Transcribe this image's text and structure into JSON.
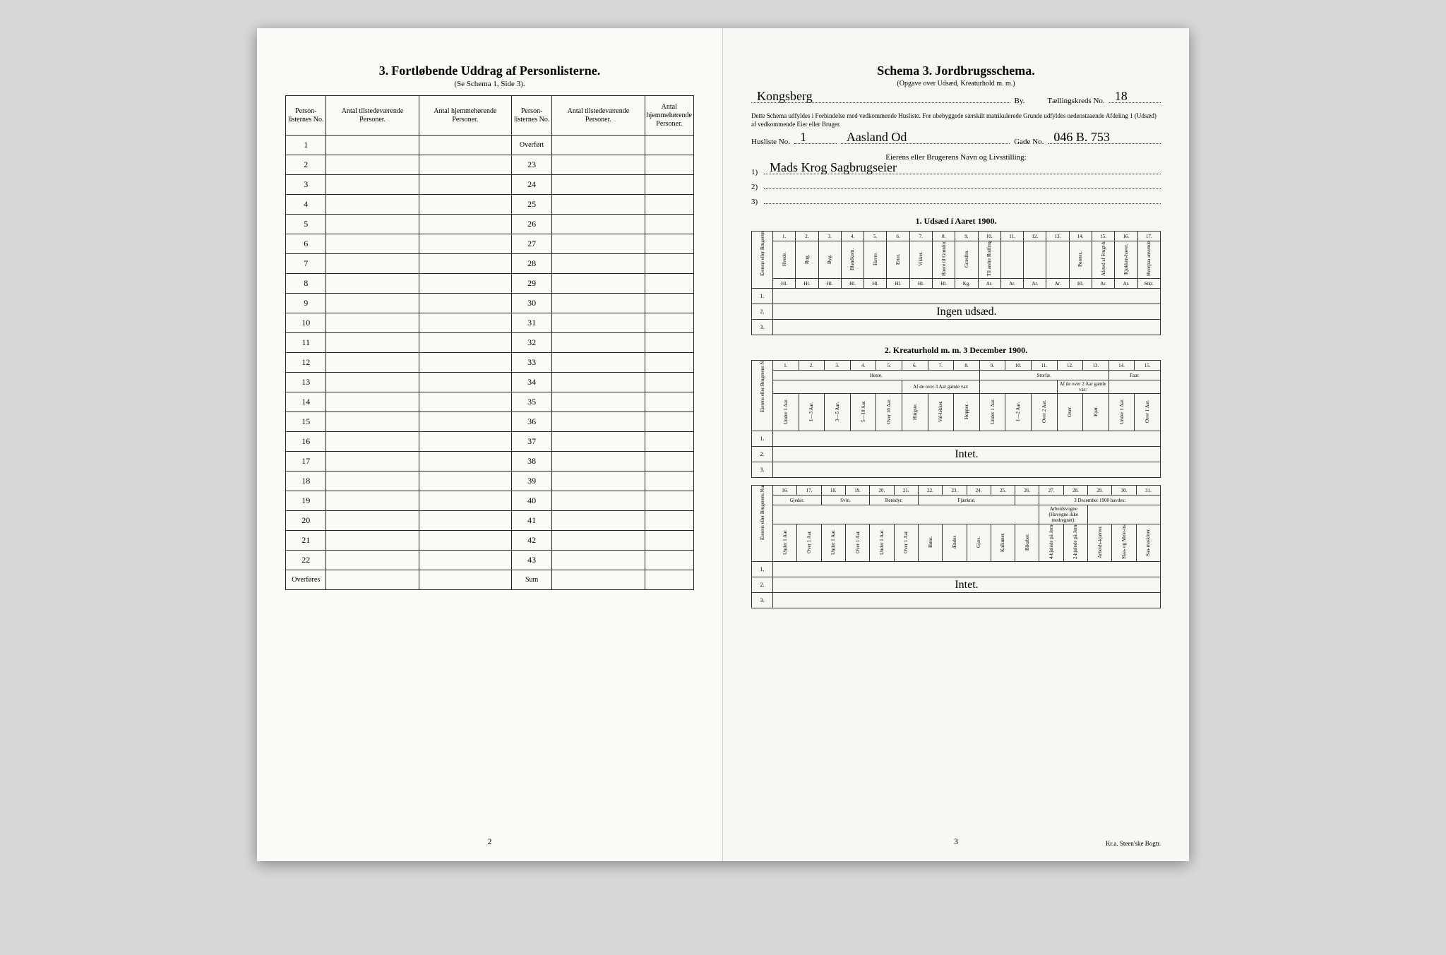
{
  "left": {
    "title_num": "3.",
    "title": "Fortløbende Uddrag af Personlisterne.",
    "subtitle": "(Se Schema 1, Side 3).",
    "headers": {
      "col1": "Person-listernes No.",
      "col2": "Antal tilstedeværende Personer.",
      "col3": "Antal hjemmehørende Personer.",
      "col4": "Person-listernes No.",
      "col5": "Antal tilstedeværende Personer.",
      "col6": "Antal hjemmehørende Personer."
    },
    "overfort": "Overført",
    "left_rows": [
      "1",
      "2",
      "3",
      "4",
      "5",
      "6",
      "7",
      "8",
      "9",
      "10",
      "11",
      "12",
      "13",
      "14",
      "15",
      "16",
      "17",
      "18",
      "19",
      "20",
      "21",
      "22"
    ],
    "right_rows": [
      "23",
      "24",
      "25",
      "26",
      "27",
      "28",
      "29",
      "30",
      "31",
      "32",
      "33",
      "34",
      "35",
      "36",
      "37",
      "38",
      "39",
      "40",
      "41",
      "42",
      "43"
    ],
    "overfores": "Overføres",
    "sum": "Sum",
    "page_num": "2"
  },
  "right": {
    "title_prefix": "Schema 3.",
    "title": "Jordbrugsschema.",
    "subtitle": "(Opgave over Udsæd, Kreaturhold m. m.)",
    "city_value": "Kongsberg",
    "by_label": "By.",
    "kreds_label": "Tællingskreds No.",
    "kreds_value": "18",
    "note": "Dette Schema udfyldes i Forbindelse med vedkommende Husliste. For ubebyggede særskilt matrikulerede Grunde udfyldes nedenstaaende Afdeling 1 (Udsæd) af vedkommende Eier eller Bruger.",
    "husliste_label": "Husliste No.",
    "husliste_value": "1",
    "husliste_name": "Aasland Od",
    "gade_label": "Gade No.",
    "gade_value": "046 B. 753",
    "owner_header": "Eierens eller Brugerens Navn og Livsstilling:",
    "owner1": "Mads Krog  Sagbrugseier",
    "owner2": "",
    "owner3": "",
    "section1_title": "1.  Udsæd i Aaret 1900.",
    "section2_title": "2.  Kreaturhold m. m. 3 December 1900.",
    "udsad_cols_num": [
      "1.",
      "2.",
      "3.",
      "4.",
      "5.",
      "6.",
      "7.",
      "8.",
      "9.",
      "10.",
      "11.",
      "12.",
      "13.",
      "14.",
      "15.",
      "16.",
      "17."
    ],
    "udsad_cols": [
      "Hvede.",
      "Rug.",
      "Byg.",
      "Blandkorn.",
      "Havre.",
      "Erter.",
      "Vikker.",
      "Havre til Grønfoder.",
      "Græsfrø.",
      "Til andre Rodfrugter benyttet Areal i Ar = ¹/₁₀ Maal.",
      "",
      "",
      "",
      "Poteter.",
      "Afsted af Frugt-haver.",
      "Kjøkken-haver.",
      "Hvorpaa anvendes Maskiner."
    ],
    "udsad_units": [
      "Hl.",
      "Hl.",
      "Hl.",
      "Hl.",
      "Hl.",
      "Hl.",
      "Hl.",
      "Hl.",
      "Kg.",
      "Ar.",
      "Ar.",
      "Ar.",
      "Ar.",
      "Hl.",
      "Ar.",
      "Ar.",
      "Stkr."
    ],
    "udsad_row_side": "Eierens eller Brugerens Numer (se ovenfor).",
    "udsad_handwrite": "Ingen udsæd.",
    "kretur_cols_num": [
      "1.",
      "2.",
      "3.",
      "4.",
      "5.",
      "6.",
      "7.",
      "8.",
      "9.",
      "10.",
      "11.",
      "12.",
      "13.",
      "14.",
      "15."
    ],
    "heste_label": "Heste.",
    "storfae_label": "Storfæ.",
    "faar_label": "Faar.",
    "af3aar_label": "Af de over 3 Aar gamle var:",
    "af2aar_label": "Af de over 2 Aar gamle var:",
    "kretur_cols": [
      "Under 1 Aar.",
      "1—3 Aar.",
      "3—5 Aar.",
      "5—10 Aar.",
      "Over 10 Aar.",
      "Hingste.",
      "Val-lakker.",
      "Hopper.",
      "Under 1 Aar.",
      "1—2 Aar.",
      "Over 2 Aar.",
      "Oxer.",
      "Kjør.",
      "Under 1 Aar.",
      "Over 1 Aar."
    ],
    "kretur_handwrite": "Intet.",
    "kretur2_cols_num": [
      "16.",
      "17.",
      "18.",
      "19.",
      "20.",
      "21.",
      "22.",
      "23.",
      "24.",
      "25.",
      "26.",
      "27.",
      "28.",
      "29.",
      "30.",
      "31."
    ],
    "gjeder_label": "Gjeder.",
    "svin_label": "Svin.",
    "rensdyr_label": "Rensdyr.",
    "fjaerkrae_label": "Fjærkræ.",
    "dec_label": "3 December 1900 havdes:",
    "arbeid_label": "Arbeidsvogne (Havogne ikke medregnet):",
    "kretur2_cols": [
      "Under 1 Aar.",
      "Over 1 Aar.",
      "Under 1 Aar.",
      "Over 1 Aar.",
      "Under 1 Aar.",
      "Over 1 Aar.",
      "Høns.",
      "Ænder.",
      "Gjæs.",
      "Kalkuner.",
      "Bikuber.",
      "4-hjulede på Jern-axler.",
      "2-hjulede på Jern-axler.",
      "Arbeids-kjærrer.",
      "Slaa- og Meie-maskiner.",
      "Saa-maskiner."
    ],
    "kretur2_handwrite": "Intet.",
    "page_num": "3",
    "printer": "Kr.a. Steen'ske Bogtr."
  }
}
